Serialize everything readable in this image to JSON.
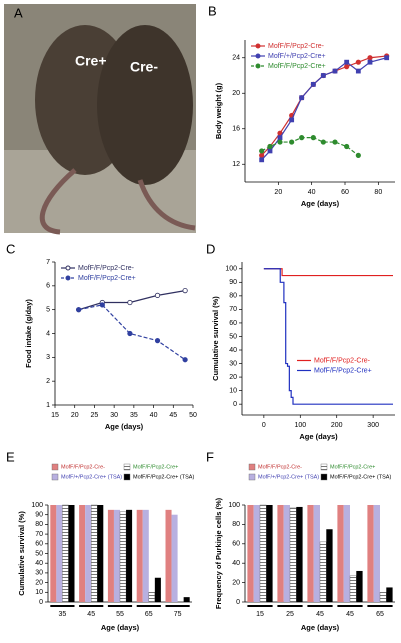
{
  "panel_a": {
    "panel": "A",
    "labels": [
      "Cre+",
      "Cre-"
    ]
  },
  "chart_data": [
    {
      "type": "line",
      "panel": "B",
      "xlabel": "Age (days)",
      "ylabel": "Body weight (g)",
      "x": [
        10,
        15,
        21,
        28,
        34,
        41,
        47,
        54,
        61,
        68,
        75,
        85
      ],
      "xlim": [
        0,
        90
      ],
      "xticks": [
        20,
        40,
        60,
        80
      ],
      "ylim": [
        10,
        26
      ],
      "yticks": [
        12,
        16,
        20,
        24
      ],
      "legend": "upper left",
      "series": [
        {
          "name": "MofF/F/Pcp2-Cre-",
          "color": "#d03030",
          "marker": "circle",
          "linestyle": "solid",
          "values": [
            13,
            14,
            15.5,
            17.5,
            19.5,
            21,
            22,
            22.5,
            23,
            23.5,
            24,
            24.2
          ]
        },
        {
          "name": "MofF/+/Pcp2-Cre+",
          "color": "#4040b0",
          "marker": "square",
          "linestyle": "solid",
          "values": [
            12.5,
            13.5,
            15,
            17,
            19.5,
            21,
            22,
            22.5,
            23.5,
            22.5,
            23.5,
            24
          ]
        },
        {
          "name": "MofF/F/Pcp2-Cre+",
          "color": "#2e8b2e",
          "marker": "circle",
          "linestyle": "dashed",
          "values": [
            13.5,
            14,
            14.5,
            14.5,
            15,
            15,
            14.5,
            14.5,
            14,
            13,
            null,
            null
          ]
        }
      ]
    },
    {
      "type": "line",
      "panel": "C",
      "xlabel": "Age (days)",
      "ylabel": "Food intake (g/day)",
      "x": [
        21,
        27,
        34,
        41,
        48
      ],
      "xlim": [
        15,
        50
      ],
      "xticks": [
        15,
        20,
        25,
        30,
        35,
        40,
        45,
        50
      ],
      "ylim": [
        1,
        7
      ],
      "yticks": [
        1,
        2,
        3,
        4,
        5,
        6,
        7
      ],
      "legend": "upper left",
      "series": [
        {
          "name": "MofF/F/Pcp2-Cre-",
          "color": "#303060",
          "marker": "open-circle",
          "linestyle": "solid",
          "values": [
            5.0,
            5.3,
            5.3,
            5.6,
            5.8
          ]
        },
        {
          "name": "MofF/F/Pcp2-Cre+",
          "color": "#3040a0",
          "marker": "circle",
          "linestyle": "dashed",
          "values": [
            5.0,
            5.2,
            4.0,
            3.7,
            2.9
          ]
        }
      ]
    },
    {
      "type": "line",
      "panel": "D",
      "xlabel": "Age (days)",
      "ylabel": "Cumulative survival (%)",
      "drawstyle": "steps-post",
      "xlim": [
        -60,
        360
      ],
      "xticks": [
        0,
        100,
        200,
        300
      ],
      "ylim": [
        -8,
        105
      ],
      "yticks": [
        0,
        10,
        20,
        30,
        40,
        50,
        60,
        70,
        80,
        90,
        100
      ],
      "legend": "center right",
      "series": [
        {
          "name": "MofF/F/Pcp2-Cre-",
          "color": "#e02020",
          "linestyle": "solid",
          "x": [
            0,
            50,
            350
          ],
          "values": [
            100,
            95,
            95
          ]
        },
        {
          "name": "MofF/F/Pcp2-Cre+",
          "color": "#2030c0",
          "linestyle": "solid",
          "x": [
            0,
            45,
            55,
            60,
            65,
            70,
            75,
            80
          ],
          "values": [
            100,
            90,
            75,
            30,
            28,
            10,
            5,
            0
          ]
        }
      ]
    },
    {
      "type": "bar",
      "panel": "E",
      "xlabel": "Age (days)",
      "ylabel": "Cumulative survival (%)",
      "categories": [
        "35",
        "45",
        "55",
        "65",
        "75"
      ],
      "ylim": [
        0,
        100
      ],
      "yticks": [
        0,
        10,
        20,
        30,
        40,
        50,
        60,
        70,
        80,
        90,
        100
      ],
      "legend": "upper",
      "series": [
        {
          "name": "MofF/F/Pcp2-Cre-",
          "color": "#e08080",
          "values": [
            100,
            100,
            95,
            95,
            95
          ]
        },
        {
          "name": "MofF/+/Pcp2-Cre+ (TSA)",
          "color": "#b8b0e0",
          "values": [
            100,
            100,
            95,
            95,
            90
          ]
        },
        {
          "name": "MofF/F/Pcp2-Cre+",
          "color": "#888888",
          "pattern": "hatch",
          "values": [
            100,
            100,
            93,
            10,
            0
          ]
        },
        {
          "name": "MofF/F/Pcp2-Cre+ (TSA)",
          "color": "#000000",
          "values": [
            100,
            100,
            95,
            25,
            5
          ]
        }
      ]
    },
    {
      "type": "bar",
      "panel": "F",
      "xlabel": "Age (days)",
      "ylabel": "Frequency of Purkinje cells (%)",
      "categories": [
        "15",
        "25",
        "45",
        "45",
        "65"
      ],
      "ylim": [
        0,
        100
      ],
      "yticks": [
        0,
        20,
        40,
        60,
        80,
        100
      ],
      "legend": "upper",
      "series": [
        {
          "name": "MofF/F/Pcp2-Cre-",
          "color": "#e08080",
          "values": [
            100,
            100,
            100,
            100,
            100
          ]
        },
        {
          "name": "MofF/+/Pcp2-Cre+ (TSA)",
          "color": "#b8b0e0",
          "values": [
            100,
            100,
            100,
            100,
            100
          ]
        },
        {
          "name": "MofF/F/Pcp2-Cre+",
          "color": "#888888",
          "pattern": "hatch",
          "values": [
            100,
            97,
            62,
            27,
            10
          ]
        },
        {
          "name": "MofF/F/Pcp2-Cre+ (TSA)",
          "color": "#000000",
          "values": [
            100,
            98,
            75,
            32,
            15
          ]
        }
      ]
    }
  ]
}
